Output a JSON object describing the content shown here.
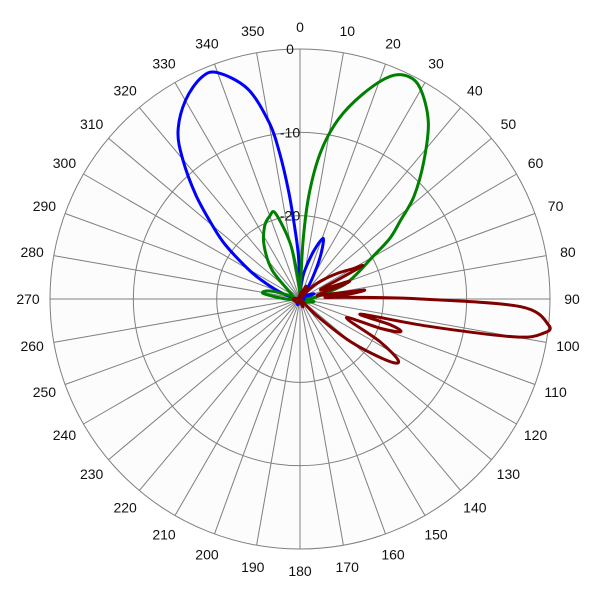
{
  "chart_data": {
    "type": "polar-line",
    "angle_unit": "degrees",
    "angle_direction": "clockwise",
    "zero_direction": "top",
    "angle_ticks": [
      0,
      10,
      20,
      30,
      40,
      50,
      60,
      70,
      80,
      90,
      100,
      110,
      120,
      130,
      140,
      150,
      160,
      170,
      180,
      190,
      200,
      210,
      220,
      230,
      240,
      250,
      260,
      270,
      280,
      290,
      300,
      310,
      320,
      330,
      340,
      350
    ],
    "radial_ticks": [
      0,
      -10,
      -20
    ],
    "radial_range": [
      -30,
      0
    ],
    "grid": true,
    "background_color": "#fcfcfc",
    "series": [
      {
        "color": "#0000ff",
        "points": [
          [
            270,
            -30.0
          ],
          [
            280,
            -29.2
          ],
          [
            290,
            -27.2
          ],
          [
            296,
            -24.9
          ],
          [
            300,
            -22.8
          ],
          [
            306,
            -18.9
          ],
          [
            310,
            -16.3
          ],
          [
            315,
            -12.3
          ],
          [
            320,
            -8.1
          ],
          [
            324,
            -5.1
          ],
          [
            330,
            -2.5
          ],
          [
            336,
            -0.9
          ],
          [
            340,
            -1.1
          ],
          [
            346,
            -4.0
          ],
          [
            350,
            -8.4
          ],
          [
            352,
            -12.2
          ],
          [
            354,
            -17.1
          ],
          [
            356,
            -21.8
          ],
          [
            358,
            -25.0
          ],
          [
            0,
            -29.3
          ],
          [
            4,
            -28.3
          ],
          [
            8,
            -27.0
          ],
          [
            12,
            -25.7
          ],
          [
            16,
            -24.0
          ],
          [
            20,
            -22.4
          ],
          [
            22,
            -22.5
          ],
          [
            26,
            -24.6
          ],
          [
            30,
            -26.8
          ],
          [
            36,
            -28.6
          ],
          [
            45,
            -29.5
          ],
          [
            60,
            -29.1
          ],
          [
            70,
            -28.2
          ],
          [
            80,
            -29.6
          ],
          [
            100,
            -29.0
          ],
          [
            120,
            -29.6
          ],
          [
            180,
            -30.0
          ],
          [
            200,
            -29.3
          ],
          [
            230,
            -29.5
          ],
          [
            260,
            -29.9
          ],
          [
            270,
            -30.0
          ]
        ]
      },
      {
        "color": "#008000",
        "points": [
          [
            0,
            -30.0
          ],
          [
            3,
            -23.1
          ],
          [
            5,
            -17.3
          ],
          [
            8,
            -12.2
          ],
          [
            12,
            -8.0
          ],
          [
            17,
            -4.3
          ],
          [
            22,
            -1.2
          ],
          [
            26,
            -0.3
          ],
          [
            30,
            -1.0
          ],
          [
            36,
            -3.8
          ],
          [
            42,
            -7.8
          ],
          [
            48,
            -11.6
          ],
          [
            52,
            -14.7
          ],
          [
            56,
            -17.0
          ],
          [
            60,
            -20.0
          ],
          [
            66,
            -22.5
          ],
          [
            72,
            -24.4
          ],
          [
            78,
            -27.0
          ],
          [
            84,
            -28.2
          ],
          [
            90,
            -29.2
          ],
          [
            100,
            -28.3
          ],
          [
            110,
            -28.9
          ],
          [
            130,
            -29.5
          ],
          [
            180,
            -30.0
          ],
          [
            260,
            -29.7
          ],
          [
            270,
            -28.3
          ],
          [
            278,
            -25.7
          ],
          [
            282,
            -25.6
          ],
          [
            286,
            -26.7
          ],
          [
            290,
            -28.8
          ],
          [
            300,
            -28.8
          ],
          [
            316,
            -25.2
          ],
          [
            326,
            -22.3
          ],
          [
            334,
            -20.3
          ],
          [
            340,
            -19.4
          ],
          [
            344,
            -19.3
          ],
          [
            350,
            -23.2
          ],
          [
            354,
            -27.3
          ],
          [
            358,
            -29.3
          ],
          [
            0,
            -30.0
          ]
        ]
      },
      {
        "color": "#800000",
        "points": [
          [
            35,
            -30.0
          ],
          [
            44,
            -28.2
          ],
          [
            50,
            -26.5
          ],
          [
            56,
            -24.4
          ],
          [
            60,
            -22.8
          ],
          [
            62,
            -21.5
          ],
          [
            63,
            -24.6
          ],
          [
            66,
            -27.3
          ],
          [
            70,
            -23.8
          ],
          [
            72,
            -24.8
          ],
          [
            76,
            -27.6
          ],
          [
            80,
            -27.2
          ],
          [
            82,
            -22.3
          ],
          [
            84,
            -23.8
          ],
          [
            86,
            -27.0
          ],
          [
            88,
            -23.9
          ],
          [
            90,
            -15.5
          ],
          [
            92,
            -3.5
          ],
          [
            96,
            0.0
          ],
          [
            98,
            -0.5
          ],
          [
            100,
            -3.8
          ],
          [
            102,
            -14.3
          ],
          [
            104,
            -22.5
          ],
          [
            106,
            -18.6
          ],
          [
            108,
            -17.3
          ],
          [
            110,
            -19.6
          ],
          [
            112,
            -24.0
          ],
          [
            118,
            -19.2
          ],
          [
            122,
            -16.1
          ],
          [
            125,
            -17.0
          ],
          [
            130,
            -21.9
          ],
          [
            135,
            -27.2
          ],
          [
            140,
            -30.0
          ],
          [
            160,
            -29.0
          ],
          [
            180,
            -30.0
          ],
          [
            200,
            -29.6
          ],
          [
            240,
            -29.4
          ],
          [
            270,
            -29.2
          ],
          [
            300,
            -29.8
          ],
          [
            340,
            -29.7
          ],
          [
            10,
            -29.2
          ],
          [
            20,
            -28.9
          ],
          [
            25,
            -28.3
          ],
          [
            30,
            -29.1
          ],
          [
            35,
            -30.0
          ]
        ]
      }
    ]
  }
}
